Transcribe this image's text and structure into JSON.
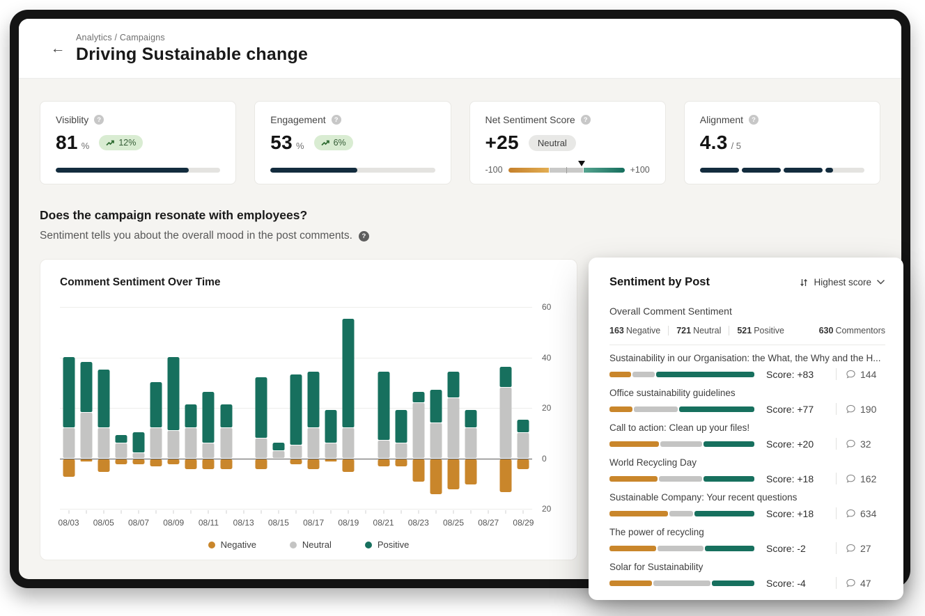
{
  "colors": {
    "navy": "#132c3e",
    "teal": "#17705e",
    "orange": "#c9862b",
    "neutral_gray": "#c4c4c3",
    "badge_green_bg": "#d9ecd2",
    "badge_green_text": "#355c36"
  },
  "header": {
    "breadcrumb": "Analytics / Campaigns",
    "title": "Driving Sustainable change",
    "back_icon": "arrow-left"
  },
  "kpis": {
    "visibility": {
      "label": "Visiblity",
      "value": "81",
      "unit": "%",
      "trend": "12%",
      "progress_pct": 81
    },
    "engagement": {
      "label": "Engagement",
      "value": "53",
      "unit": "%",
      "trend": "6%",
      "progress_pct": 53
    },
    "net_sentiment": {
      "label": "Net Sentiment Score",
      "value": "+25",
      "badge": "Neutral",
      "scale_min": "-100",
      "scale_max": "+100",
      "marker_pct": 63
    },
    "alignment": {
      "label": "Alignment",
      "value": "4.3",
      "denominator": "/ 5",
      "full_segments": 3,
      "partial_fill_pct": 20
    }
  },
  "section": {
    "heading": "Does the campaign resonate with employees?",
    "subheading": "Sentiment tells you about the overall mood in the post comments."
  },
  "chart_data": {
    "type": "bar",
    "stacked": true,
    "title": "Comment Sentiment Over Time",
    "x": [
      "08/03",
      "08/04",
      "08/05",
      "08/06",
      "08/07",
      "08/08",
      "08/09",
      "08/10",
      "08/11",
      "08/12",
      "08/13",
      "08/14",
      "08/15",
      "08/16",
      "08/17",
      "08/18",
      "08/19",
      "08/20",
      "08/21",
      "08/22",
      "08/23",
      "08/24",
      "08/25",
      "08/26",
      "08/27",
      "08/28",
      "08/29"
    ],
    "series": [
      {
        "name": "Negative",
        "values": [
          -7,
          -1,
          -5,
          -2,
          -2,
          -3,
          -2,
          -4,
          -4,
          -4,
          null,
          -4,
          0,
          -2,
          -4,
          -1,
          -5,
          null,
          -3,
          -3,
          -9,
          -14,
          -12,
          -10,
          null,
          -13,
          -4
        ]
      },
      {
        "name": "Neutral",
        "values": [
          12,
          18,
          12,
          6,
          2,
          12,
          11,
          12,
          6,
          12,
          null,
          8,
          3,
          5,
          12,
          6,
          12,
          null,
          7,
          6,
          22,
          14,
          24,
          12,
          null,
          28,
          10
        ]
      },
      {
        "name": "Positive",
        "values": [
          28,
          20,
          23,
          3,
          8,
          18,
          29,
          9,
          20,
          9,
          null,
          24,
          3,
          28,
          22,
          13,
          43,
          null,
          27,
          13,
          4,
          13,
          10,
          7,
          null,
          8,
          5
        ]
      }
    ],
    "ylim": [
      -20,
      60
    ],
    "y_gridlines": [
      60,
      40,
      20,
      0,
      -20
    ],
    "x_label_every": 2,
    "grid": true,
    "legend": [
      "Negative",
      "Neutral",
      "Positive"
    ],
    "legend_position": "bottom"
  },
  "posts_panel": {
    "title": "Sentiment by Post",
    "sort_label": "Highest score",
    "overall_label": "Overall Comment Sentiment",
    "stats": [
      {
        "value": "163",
        "label": "Negative"
      },
      {
        "value": "721",
        "label": "Neutral"
      },
      {
        "value": "521",
        "label": "Positive"
      }
    ],
    "commentors": {
      "value": "630",
      "label": "Commentors"
    },
    "posts": [
      {
        "title": "Sustainability in our Organisation: the What, the Why and the H...",
        "negative_pct": 15,
        "neutral_pct": 16,
        "positive_pct": 69,
        "score_label": "Score: +83",
        "comments": "144"
      },
      {
        "title": "Office sustainability guidelines",
        "negative_pct": 16,
        "neutral_pct": 31,
        "positive_pct": 53,
        "score_label": "Score: +77",
        "comments": "190"
      },
      {
        "title": "Call to action: Clean up your files!",
        "negative_pct": 35,
        "neutral_pct": 29,
        "positive_pct": 36,
        "score_label": "Score: +20",
        "comments": "32"
      },
      {
        "title": "World Recycling Day",
        "negative_pct": 34,
        "neutral_pct": 30,
        "positive_pct": 36,
        "score_label": "Score: +18",
        "comments": "162"
      },
      {
        "title": "Sustainable Company: Your recent questions",
        "negative_pct": 41,
        "neutral_pct": 17,
        "positive_pct": 42,
        "score_label": "Score: +18",
        "comments": "634"
      },
      {
        "title": "The power of recycling",
        "negative_pct": 33,
        "neutral_pct": 32,
        "positive_pct": 35,
        "score_label": "Score: -2",
        "comments": "27"
      },
      {
        "title": "Solar for Sustainability",
        "negative_pct": 30,
        "neutral_pct": 40,
        "positive_pct": 30,
        "score_label": "Score: -4",
        "comments": "47"
      }
    ]
  }
}
